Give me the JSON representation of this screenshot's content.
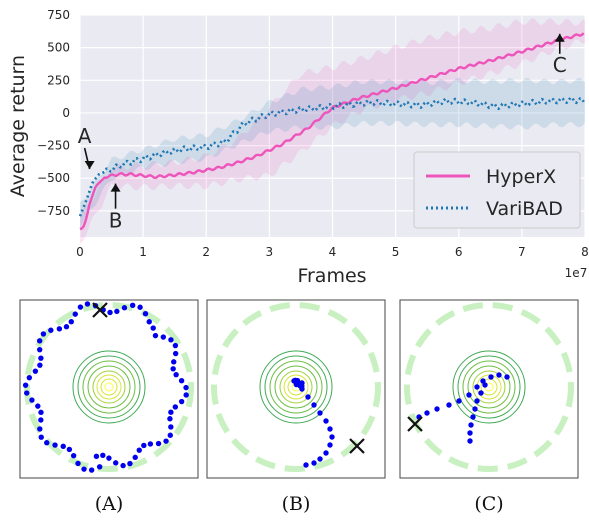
{
  "chart_data": [
    {
      "type": "line",
      "xlabel": "Frames",
      "ylabel": "Average return",
      "x_multiplier_label": "1e7",
      "xlim": [
        0,
        8
      ],
      "ylim": [
        -950,
        750
      ],
      "xticks": [
        0,
        1,
        2,
        3,
        4,
        5,
        6,
        7,
        8
      ],
      "yticks": [
        -750,
        -500,
        -250,
        0,
        250,
        500,
        750
      ],
      "xtick_labels": [
        "0",
        "1",
        "2",
        "3",
        "4",
        "5",
        "6",
        "7",
        "8"
      ],
      "ytick_labels": [
        "−750",
        "−500",
        "−250",
        "0",
        "250",
        "500",
        "750"
      ],
      "grid": true,
      "background": "#eaeaf2",
      "legend_position": "lower-right",
      "series": [
        {
          "name": "HyperX",
          "color": "#ee55bb",
          "style": "solid",
          "points": [
            [
              0.0,
              -890
            ],
            [
              0.05,
              -880
            ],
            [
              0.1,
              -810
            ],
            [
              0.15,
              -700
            ],
            [
              0.25,
              -560
            ],
            [
              0.4,
              -490
            ],
            [
              0.6,
              -470
            ],
            [
              0.8,
              -470
            ],
            [
              1.0,
              -480
            ],
            [
              1.2,
              -490
            ],
            [
              1.5,
              -475
            ],
            [
              1.8,
              -455
            ],
            [
              2.2,
              -420
            ],
            [
              2.5,
              -380
            ],
            [
              2.8,
              -330
            ],
            [
              3.2,
              -240
            ],
            [
              3.6,
              -120
            ],
            [
              4.0,
              40
            ],
            [
              4.4,
              110
            ],
            [
              5.0,
              190
            ],
            [
              5.6,
              280
            ],
            [
              6.0,
              340
            ],
            [
              6.5,
              400
            ],
            [
              7.0,
              470
            ],
            [
              7.6,
              560
            ],
            [
              8.0,
              610
            ]
          ],
          "band": [
            [
              0.0,
              -1000,
              -800
            ],
            [
              0.5,
              -560,
              -420
            ],
            [
              1.0,
              -570,
              -400
            ],
            [
              1.5,
              -560,
              -380
            ],
            [
              2.0,
              -560,
              -330
            ],
            [
              2.5,
              -510,
              -200
            ],
            [
              3.0,
              -480,
              40
            ],
            [
              3.5,
              -300,
              300
            ],
            [
              4.0,
              -100,
              350
            ],
            [
              4.5,
              30,
              420
            ],
            [
              5.0,
              100,
              500
            ],
            [
              5.5,
              150,
              570
            ],
            [
              6.0,
              230,
              620
            ],
            [
              6.5,
              300,
              650
            ],
            [
              7.0,
              380,
              700
            ],
            [
              7.5,
              480,
              700
            ],
            [
              8.0,
              560,
              690
            ]
          ]
        },
        {
          "name": "VariBAD",
          "color": "#1f77b4",
          "style": "dotted",
          "points": [
            [
              0.0,
              -790
            ],
            [
              0.1,
              -670
            ],
            [
              0.2,
              -530
            ],
            [
              0.3,
              -470
            ],
            [
              0.5,
              -430
            ],
            [
              0.7,
              -390
            ],
            [
              1.0,
              -350
            ],
            [
              1.3,
              -310
            ],
            [
              1.6,
              -280
            ],
            [
              2.0,
              -260
            ],
            [
              2.3,
              -220
            ],
            [
              2.6,
              -80
            ],
            [
              3.0,
              -10
            ],
            [
              3.4,
              20
            ],
            [
              3.8,
              40
            ],
            [
              4.2,
              60
            ],
            [
              4.6,
              80
            ],
            [
              5.0,
              70
            ],
            [
              5.4,
              60
            ],
            [
              5.8,
              90
            ],
            [
              6.2,
              80
            ],
            [
              6.6,
              50
            ],
            [
              7.0,
              70
            ],
            [
              7.4,
              90
            ],
            [
              7.8,
              100
            ],
            [
              8.0,
              90
            ]
          ],
          "band": [
            [
              0.0,
              -870,
              -700
            ],
            [
              0.5,
              -500,
              -360
            ],
            [
              1.0,
              -420,
              -280
            ],
            [
              1.5,
              -380,
              -200
            ],
            [
              2.0,
              -350,
              -170
            ],
            [
              2.5,
              -240,
              -60
            ],
            [
              3.0,
              -140,
              80
            ],
            [
              3.5,
              -110,
              180
            ],
            [
              4.0,
              -110,
              200
            ],
            [
              4.5,
              -80,
              240
            ],
            [
              5.0,
              -80,
              240
            ],
            [
              5.5,
              -90,
              230
            ],
            [
              6.0,
              -90,
              250
            ],
            [
              6.5,
              -100,
              240
            ],
            [
              7.0,
              -110,
              250
            ],
            [
              7.5,
              -90,
              240
            ],
            [
              8.0,
              -90,
              250
            ]
          ]
        }
      ],
      "annotations": [
        {
          "text": "A",
          "x": 0.2,
          "y": -460,
          "arrow": "down"
        },
        {
          "text": "B",
          "x": 0.5,
          "y": -480,
          "arrow": "up"
        },
        {
          "text": "C",
          "x": 7.6,
          "y": 560,
          "arrow": "up"
        }
      ]
    },
    {
      "type": "scatter",
      "panels": [
        {
          "caption": "(A)",
          "goal_marker": "x",
          "path": "circle-around-goal-ring"
        },
        {
          "caption": "(B)",
          "goal_marker": "x",
          "path": "into-contour-center"
        },
        {
          "caption": "(C)",
          "goal_marker": "x",
          "path": "from-contour-to-ring"
        }
      ],
      "ring_color": "#c8f0c0",
      "trajectory_color": "#0000ee",
      "contour_colors": [
        "#ffff40",
        "#d6e53a",
        "#a0d03a",
        "#6cbe44",
        "#40aa55"
      ]
    }
  ]
}
